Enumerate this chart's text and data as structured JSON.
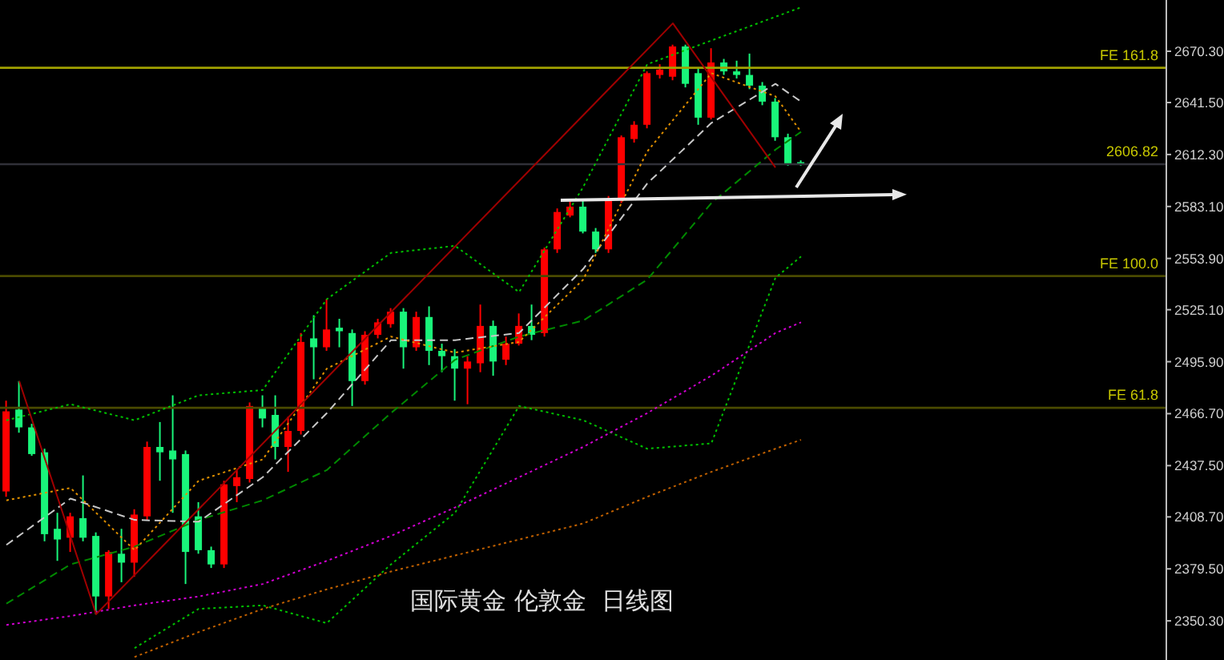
{
  "chart_data": {
    "type": "candlestick",
    "title": "国际黄金 伦敦金  日线图",
    "categories": [
      null,
      null,
      null,
      null,
      null,
      null,
      null,
      null,
      null,
      null,
      null,
      null,
      null,
      null,
      null,
      null,
      null,
      null,
      null,
      null,
      null,
      null,
      null,
      null,
      null,
      null,
      null,
      null,
      null,
      null,
      null,
      null,
      null,
      null,
      null,
      null,
      null,
      null,
      null,
      null,
      null,
      null,
      null,
      null,
      null,
      null,
      null,
      null,
      null,
      null,
      null,
      null,
      null,
      null,
      null,
      null,
      null,
      null,
      null,
      null,
      null,
      null,
      null,
      null,
      null,
      null,
      null,
      null,
      null,
      null,
      null,
      null,
      null,
      null,
      null,
      null,
      null,
      null,
      null,
      null,
      null,
      null,
      null,
      null,
      null,
      null,
      null,
      null,
      null,
      null,
      null
    ],
    "ohlc": [
      [
        2423,
        2474,
        2420,
        2468
      ],
      [
        2469,
        2485,
        2456,
        2459
      ],
      [
        2459,
        2461,
        2443,
        2444
      ],
      [
        2445,
        2447,
        2395,
        2399
      ],
      [
        2402,
        2411,
        2384,
        2396
      ],
      [
        2397,
        2411,
        2389,
        2409
      ],
      [
        2408,
        2432,
        2395,
        2397
      ],
      [
        2398,
        2400,
        2354,
        2364
      ],
      [
        2364,
        2390,
        2357,
        2389
      ],
      [
        2388,
        2402,
        2372,
        2383
      ],
      [
        2383,
        2413,
        2375,
        2410
      ],
      [
        2409,
        2451,
        2407,
        2448
      ],
      [
        2448,
        2462,
        2429,
        2445
      ],
      [
        2446,
        2477,
        2411,
        2441
      ],
      [
        2444,
        2446,
        2371,
        2389
      ],
      [
        2409,
        2417,
        2388,
        2390
      ],
      [
        2390,
        2392,
        2380,
        2382
      ],
      [
        2382,
        2429,
        2380,
        2427
      ],
      [
        2426,
        2435,
        2417,
        2431
      ],
      [
        2430,
        2473,
        2428,
        2471
      ],
      [
        2470,
        2477,
        2459,
        2464
      ],
      [
        2466,
        2477,
        2441,
        2448
      ],
      [
        2448,
        2465,
        2434,
        2457
      ],
      [
        2457,
        2512,
        2455,
        2507
      ],
      [
        2509,
        2522,
        2486,
        2504
      ],
      [
        2504,
        2531,
        2502,
        2514
      ],
      [
        2515,
        2520,
        2504,
        2513
      ],
      [
        2512,
        2514,
        2471,
        2485
      ],
      [
        2485,
        2513,
        2483,
        2511
      ],
      [
        2511,
        2520,
        2509,
        2518
      ],
      [
        2517,
        2526,
        2515,
        2524
      ],
      [
        2524,
        2526,
        2492,
        2504
      ],
      [
        2504,
        2524,
        2502,
        2521
      ],
      [
        2521,
        2527,
        2494,
        2502
      ],
      [
        2502,
        2506,
        2490,
        2499
      ],
      [
        2499,
        2503,
        2474,
        2492
      ],
      [
        2492,
        2499,
        2472,
        2496
      ],
      [
        2495,
        2528,
        2490,
        2516
      ],
      [
        2516,
        2519,
        2488,
        2496
      ],
      [
        2497,
        2510,
        2494,
        2506
      ],
      [
        2506,
        2523,
        2505,
        2516
      ],
      [
        2516,
        2528,
        2508,
        2511
      ],
      [
        2512,
        2560,
        2510,
        2559
      ],
      [
        2559,
        2582,
        2557,
        2580
      ],
      [
        2578,
        2586,
        2577,
        2583
      ],
      [
        2583,
        2587,
        2568,
        2569
      ],
      [
        2569,
        2571,
        2557,
        2559
      ],
      [
        2559,
        2589,
        2557,
        2587
      ],
      [
        2587,
        2623,
        2585,
        2622
      ],
      [
        2621,
        2631,
        2619,
        2629
      ],
      [
        2629,
        2659,
        2627,
        2658
      ],
      [
        2657,
        2663,
        2655,
        2660
      ],
      [
        2656,
        2674,
        2654,
        2673
      ],
      [
        2673,
        2674,
        2650,
        2652
      ],
      [
        2658,
        2661,
        2629,
        2633
      ],
      [
        2633,
        2672,
        2632,
        2664
      ],
      [
        2664,
        2666,
        2657,
        2659
      ],
      [
        2659,
        2665,
        2655,
        2657
      ],
      [
        2657,
        2669,
        2649,
        2651
      ],
      [
        2651,
        2653,
        2640,
        2642
      ],
      [
        2642,
        2644,
        2620,
        2622
      ],
      [
        2622,
        2624,
        2606,
        2607
      ],
      [
        2608,
        2609,
        2606,
        2606.82
      ],
      null,
      null,
      null,
      null,
      null,
      null,
      null,
      null,
      null,
      null,
      null,
      null,
      null,
      null,
      null,
      null,
      null,
      null,
      null,
      null,
      null,
      null,
      null,
      null,
      null,
      null,
      null,
      null
    ],
    "colors": [
      "#ff0000",
      "#19f57a",
      "#19f57a",
      "#19f57a",
      "#19f57a",
      "#ff0000",
      "#19f57a",
      "#19f57a",
      "#ff0000",
      "#19f57a",
      "#ff0000",
      "#ff0000",
      "#19f57a",
      "#19f57a",
      "#19f57a",
      "#19f57a",
      "#19f57a",
      "#ff0000",
      "#ff0000",
      "#ff0000",
      "#19f57a",
      "#19f57a",
      "#ff0000",
      "#ff0000",
      "#19f57a",
      "#ff0000",
      "#19f57a",
      "#19f57a",
      "#ff0000",
      "#ff0000",
      "#ff0000",
      "#19f57a",
      "#ff0000",
      "#19f57a",
      "#19f57a",
      "#19f57a",
      "#ff0000",
      "#ff0000",
      "#19f57a",
      "#ff0000",
      "#ff0000",
      "#19f57a",
      "#ff0000",
      "#ff0000",
      "#ff0000",
      "#19f57a",
      "#19f57a",
      "#ff0000",
      "#ff0000",
      "#ff0000",
      "#ff0000",
      "#ff0000",
      "#ff0000",
      "#19f57a",
      "#19f57a",
      "#ff0000",
      "#19f57a",
      "#19f57a",
      "#19f57a",
      "#19f57a",
      "#19f57a",
      "#19f57a",
      "#19f57a",
      null,
      null,
      null,
      null,
      null,
      null,
      null,
      null,
      null,
      null,
      null,
      null,
      null,
      null,
      null,
      null,
      null,
      null,
      null,
      null,
      null,
      null,
      null,
      null,
      null,
      null,
      null,
      null
    ],
    "series": [
      {
        "type": "line",
        "color": "#00c000",
        "line_style": "dotted",
        "values": [
          2463,
          null,
          null,
          null,
          null,
          2472,
          null,
          null,
          null,
          null,
          2463,
          null,
          null,
          null,
          null,
          2477,
          null,
          null,
          null,
          null,
          2480,
          null,
          null,
          null,
          null,
          2531,
          null,
          null,
          null,
          null,
          2557,
          null,
          null,
          null,
          null,
          2561,
          null,
          null,
          null,
          null,
          2535,
          null,
          null,
          null,
          null,
          2594,
          null,
          null,
          null,
          null,
          2663,
          null,
          null,
          null,
          null,
          null,
          null,
          null,
          null,
          null,
          null,
          null,
          2695,
          null,
          null,
          null,
          null,
          null,
          null,
          null,
          null,
          null,
          null,
          null,
          null,
          null,
          null,
          null,
          null,
          null,
          null,
          null,
          null,
          null,
          null,
          null,
          null,
          null,
          null,
          null,
          null
        ]
      },
      {
        "type": "line",
        "color": "#00c000",
        "line_style": "dotted",
        "values": [
          null,
          null,
          null,
          null,
          null,
          null,
          null,
          null,
          null,
          null,
          2335,
          null,
          null,
          null,
          null,
          2357,
          null,
          null,
          null,
          null,
          2359,
          null,
          null,
          null,
          null,
          2349,
          null,
          null,
          null,
          null,
          2382,
          null,
          null,
          null,
          null,
          2411,
          null,
          null,
          null,
          null,
          2471,
          null,
          null,
          null,
          null,
          2463,
          null,
          null,
          null,
          null,
          2447,
          null,
          null,
          null,
          null,
          2450,
          null,
          null,
          null,
          null,
          2543,
          null,
          2555,
          null,
          null,
          null,
          null,
          null,
          null,
          null,
          null,
          null,
          null,
          null,
          null,
          null,
          null,
          null,
          null,
          null,
          null,
          null,
          null,
          null,
          null,
          null,
          null,
          null,
          null,
          null,
          null
        ]
      },
      {
        "type": "line",
        "color": "#008a00",
        "line_style": "dashed",
        "values": [
          2360,
          null,
          null,
          null,
          null,
          2382,
          null,
          null,
          null,
          null,
          2392,
          null,
          null,
          null,
          null,
          2407,
          null,
          null,
          null,
          null,
          2418,
          null,
          null,
          null,
          null,
          2435,
          null,
          null,
          null,
          null,
          2467,
          null,
          null,
          null,
          null,
          2497,
          null,
          null,
          null,
          null,
          2510,
          null,
          null,
          null,
          null,
          2519,
          null,
          null,
          null,
          null,
          2542,
          null,
          null,
          null,
          null,
          2585,
          null,
          null,
          null,
          null,
          2615,
          null,
          2625,
          null,
          null,
          null,
          null,
          null,
          null,
          null,
          null,
          null,
          null,
          null,
          null,
          null,
          null,
          null,
          null,
          null,
          null,
          null,
          null,
          null,
          null,
          null,
          null,
          null,
          null,
          null,
          null
        ]
      },
      {
        "type": "line",
        "color": "#c8c8c8",
        "line_style": "dashed",
        "values": [
          2393,
          null,
          null,
          null,
          null,
          2419,
          null,
          null,
          null,
          null,
          2407,
          null,
          null,
          null,
          null,
          2406,
          null,
          null,
          null,
          null,
          2431,
          null,
          null,
          null,
          null,
          2467,
          null,
          null,
          null,
          null,
          2508,
          null,
          null,
          null,
          null,
          2508,
          null,
          null,
          null,
          null,
          2512,
          null,
          null,
          null,
          null,
          2548,
          null,
          null,
          null,
          null,
          2596,
          null,
          null,
          null,
          null,
          2630,
          null,
          null,
          null,
          null,
          2652,
          null,
          2642,
          null,
          null,
          null,
          null,
          null,
          null,
          null,
          null,
          null,
          null,
          null,
          null,
          null,
          null,
          null,
          null,
          null,
          null,
          null,
          null,
          null,
          null,
          null,
          null,
          null,
          null,
          null,
          null
        ]
      },
      {
        "type": "line",
        "color": "#e09000",
        "line_style": "dotted",
        "values": [
          2418,
          null,
          null,
          null,
          null,
          2425,
          null,
          null,
          null,
          null,
          2390,
          null,
          null,
          null,
          null,
          2429,
          null,
          null,
          null,
          null,
          2441,
          null,
          null,
          null,
          null,
          2492,
          null,
          null,
          null,
          null,
          2510,
          null,
          null,
          null,
          null,
          2501,
          null,
          null,
          null,
          null,
          2507,
          null,
          null,
          null,
          null,
          2542,
          null,
          null,
          null,
          null,
          2614,
          null,
          null,
          null,
          null,
          2658,
          null,
          null,
          null,
          null,
          2645,
          null,
          2625,
          null,
          null,
          null,
          null,
          null,
          null,
          null,
          null,
          null,
          null,
          null,
          null,
          null,
          null,
          null,
          null,
          null,
          null,
          null,
          null,
          null,
          null,
          null,
          null,
          null,
          null,
          null,
          null
        ]
      },
      {
        "type": "line",
        "color": "#d000d0",
        "line_style": "dotted",
        "values": [
          2348,
          null,
          null,
          null,
          null,
          2353,
          null,
          null,
          null,
          null,
          2359,
          null,
          null,
          null,
          null,
          2364,
          null,
          null,
          null,
          null,
          2371,
          null,
          null,
          null,
          null,
          2384,
          null,
          null,
          null,
          null,
          2398,
          null,
          null,
          null,
          null,
          2414,
          null,
          null,
          null,
          null,
          2431,
          null,
          null,
          null,
          null,
          2448,
          null,
          null,
          null,
          null,
          2467,
          null,
          null,
          null,
          null,
          2488,
          null,
          null,
          null,
          null,
          2512,
          null,
          2518,
          null,
          null,
          null,
          null,
          null,
          null,
          null,
          null,
          null,
          null,
          null,
          null,
          null,
          null,
          null,
          null,
          null,
          null,
          null,
          null,
          null,
          null,
          null,
          null,
          null,
          null,
          null,
          null
        ]
      },
      {
        "type": "line",
        "color": "#c06000",
        "line_style": "dotted",
        "values": [
          null,
          null,
          null,
          null,
          null,
          null,
          null,
          null,
          null,
          null,
          2330,
          null,
          null,
          null,
          null,
          2344,
          null,
          null,
          null,
          null,
          2357,
          null,
          null,
          null,
          null,
          2368,
          null,
          null,
          null,
          null,
          2378,
          null,
          null,
          null,
          null,
          2387,
          null,
          null,
          null,
          null,
          2396,
          null,
          null,
          null,
          null,
          2405,
          null,
          null,
          null,
          null,
          2420,
          null,
          null,
          null,
          null,
          2434,
          null,
          null,
          null,
          null,
          2447,
          null,
          2452,
          null,
          null,
          null,
          null,
          null,
          null,
          null,
          null,
          null,
          null,
          null,
          null,
          null,
          null,
          null,
          null,
          null,
          null,
          null,
          null,
          null,
          null,
          null,
          null,
          null,
          null,
          null,
          null
        ]
      },
      {
        "type": "line",
        "color": "#a00000",
        "line_style": "solid",
        "values": [
          null,
          2485,
          null,
          null,
          null,
          null,
          null,
          2354,
          null,
          null,
          null,
          null,
          null,
          null,
          null,
          null,
          null,
          null,
          null,
          null,
          null,
          null,
          null,
          null,
          null,
          null,
          null,
          null,
          null,
          null,
          null,
          null,
          null,
          null,
          null,
          null,
          null,
          null,
          null,
          null,
          null,
          null,
          null,
          null,
          null,
          null,
          null,
          null,
          null,
          null,
          null,
          null,
          2686,
          null,
          null,
          null,
          null,
          null,
          null,
          null,
          2605,
          null,
          null,
          null,
          null,
          null,
          null,
          null,
          null,
          null,
          null,
          null,
          null,
          null,
          null,
          null,
          null,
          null,
          null,
          null,
          null,
          null,
          null,
          null,
          null,
          null,
          null,
          null,
          null,
          null,
          null
        ]
      }
    ],
    "ylim": [
      2328.3,
      2699.1
    ],
    "yticks": [
      {
        "value": 2350.3,
        "label": "2350.30"
      },
      {
        "value": 2379.5,
        "label": "2379.50"
      },
      {
        "value": 2408.7,
        "label": "2408.70"
      },
      {
        "value": 2437.5,
        "label": "2437.50"
      },
      {
        "value": 2466.7,
        "label": "2466.70"
      },
      {
        "value": 2495.9,
        "label": "2495.90"
      },
      {
        "value": 2525.1,
        "label": "2525.10"
      },
      {
        "value": 2553.9,
        "label": "2553.90"
      },
      {
        "value": 2583.1,
        "label": "2583.10"
      },
      {
        "value": 2612.3,
        "label": "2612.30"
      },
      {
        "value": 2641.5,
        "label": "2641.50"
      },
      {
        "value": 2670.3,
        "label": "2670.30"
      }
    ],
    "tick_labels": "y",
    "ref_lines": [
      {
        "axis": "y",
        "value": 2661,
        "label": "FE 161.8",
        "color": "#a0a000"
      },
      {
        "axis": "y",
        "value": 2544,
        "label": "FE 100.0",
        "color": "#4a4a00"
      },
      {
        "axis": "y",
        "value": 2470,
        "label": "FE 61.8",
        "color": "#4a4a00"
      },
      {
        "axis": "y",
        "value": 2606.82,
        "label": "2606.82",
        "color": "#303038"
      }
    ]
  }
}
